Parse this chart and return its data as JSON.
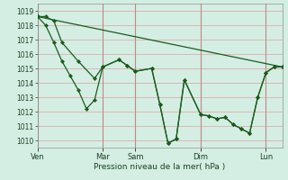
{
  "xlabel": "Pression niveau de la mer( hPa )",
  "bg_color": "#d4eee4",
  "line_color": "#1a5c1a",
  "ylim": [
    1009.5,
    1019.5
  ],
  "yticks": [
    1010,
    1011,
    1012,
    1013,
    1014,
    1015,
    1016,
    1017,
    1018,
    1019
  ],
  "day_positions": [
    0,
    48,
    72,
    120,
    168
  ],
  "day_labels": [
    "Ven",
    "Mar",
    "Sam",
    "Dim",
    "Lun"
  ],
  "xlim": [
    0,
    180
  ],
  "trend_x": [
    0,
    180
  ],
  "trend_y": [
    1018.6,
    1015.1
  ],
  "upper_x": [
    0,
    6,
    12,
    18,
    30,
    42,
    48,
    60,
    66,
    72,
    84,
    90,
    96,
    102,
    108,
    120,
    126,
    132,
    138,
    144,
    150,
    156,
    162,
    168,
    174,
    180
  ],
  "upper_y": [
    1018.6,
    1018.6,
    1018.3,
    1016.8,
    1015.5,
    1014.3,
    1015.1,
    1015.6,
    1015.2,
    1014.8,
    1015.0,
    1012.5,
    1009.8,
    1010.1,
    1014.2,
    1011.8,
    1011.7,
    1011.5,
    1011.6,
    1011.1,
    1010.8,
    1010.5,
    1013.0,
    1014.7,
    1015.1,
    1015.1
  ],
  "lower_x": [
    0,
    6,
    12,
    18,
    24,
    30,
    36,
    42,
    48,
    60,
    66,
    72,
    84,
    90,
    96,
    102,
    108,
    120,
    126,
    132,
    138,
    144,
    150,
    156,
    162,
    168,
    174,
    180
  ],
  "lower_y": [
    1018.6,
    1018.0,
    1016.8,
    1015.5,
    1014.5,
    1013.5,
    1012.2,
    1012.8,
    1015.1,
    1015.6,
    1015.2,
    1014.8,
    1015.0,
    1012.5,
    1009.8,
    1010.1,
    1014.2,
    1011.8,
    1011.7,
    1011.5,
    1011.6,
    1011.1,
    1010.8,
    1010.5,
    1013.0,
    1014.7,
    1015.1,
    1015.1
  ]
}
